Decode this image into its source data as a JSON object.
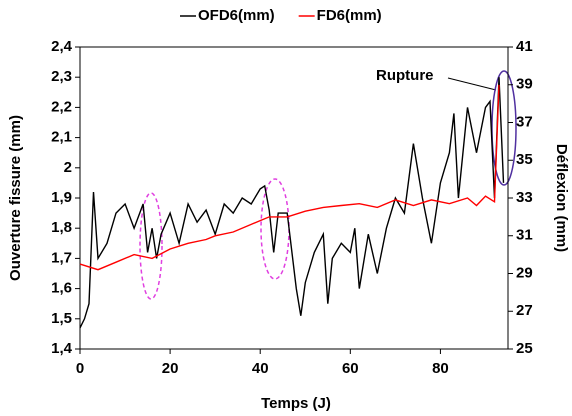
{
  "chart_data": {
    "type": "line",
    "x_label": "Temps (J)",
    "y_label": "Ouverture fissure (mm)",
    "y2_label": "Déflexion (mm)",
    "annotation": "Rupture",
    "xlim": [
      0,
      95
    ],
    "xticks": [
      0,
      20,
      40,
      60,
      80
    ],
    "ylim": [
      1.4,
      2.4
    ],
    "yticks": [
      {
        "value": 1.4,
        "label": "1,4"
      },
      {
        "value": 1.5,
        "label": "1,5"
      },
      {
        "value": 1.6,
        "label": "1,6"
      },
      {
        "value": 1.7,
        "label": "1,7"
      },
      {
        "value": 1.8,
        "label": "1,8"
      },
      {
        "value": 1.9,
        "label": "1,9"
      },
      {
        "value": 2.0,
        "label": "2"
      },
      {
        "value": 2.1,
        "label": "2,1"
      },
      {
        "value": 2.2,
        "label": "2,2"
      },
      {
        "value": 2.3,
        "label": "2,3"
      },
      {
        "value": 2.4,
        "label": "2,4"
      }
    ],
    "y2lim": [
      25,
      41
    ],
    "y2ticks": [
      25,
      27,
      29,
      31,
      33,
      35,
      37,
      39,
      41
    ],
    "series": [
      {
        "name": "OFD6(mm)",
        "color": "#000000",
        "x": [
          0,
          1,
          2,
          3,
          4,
          6,
          8,
          10,
          12,
          14,
          15,
          16,
          17,
          18,
          20,
          22,
          24,
          26,
          28,
          30,
          32,
          34,
          36,
          38,
          40,
          41,
          42,
          43,
          44,
          46,
          48,
          49,
          50,
          52,
          54,
          55,
          56,
          58,
          60,
          61,
          62,
          64,
          66,
          68,
          70,
          72,
          74,
          76,
          78,
          80,
          82,
          83,
          84,
          86,
          88,
          90,
          91,
          92,
          93,
          94
        ],
        "values": [
          1.47,
          1.5,
          1.55,
          1.92,
          1.7,
          1.75,
          1.85,
          1.88,
          1.8,
          1.88,
          1.72,
          1.8,
          1.7,
          1.78,
          1.85,
          1.75,
          1.88,
          1.82,
          1.86,
          1.78,
          1.88,
          1.85,
          1.9,
          1.88,
          1.93,
          1.94,
          1.86,
          1.72,
          1.85,
          1.85,
          1.6,
          1.51,
          1.62,
          1.72,
          1.78,
          1.55,
          1.7,
          1.75,
          1.72,
          1.8,
          1.6,
          1.78,
          1.65,
          1.8,
          1.9,
          1.85,
          2.08,
          1.9,
          1.75,
          1.95,
          2.05,
          2.18,
          1.9,
          2.2,
          2.05,
          2.2,
          2.22,
          1.9,
          2.3,
          1.95
        ]
      },
      {
        "name": "FD6(mm)",
        "color": "#ff0000",
        "axis": "y2",
        "x": [
          0,
          4,
          8,
          12,
          16,
          20,
          24,
          28,
          30,
          34,
          38,
          40,
          42,
          46,
          50,
          54,
          58,
          62,
          66,
          70,
          74,
          78,
          82,
          86,
          88,
          90,
          92,
          93
        ],
        "values": [
          29.5,
          29.2,
          29.6,
          30,
          29.8,
          30.3,
          30.6,
          30.8,
          31,
          31.2,
          31.6,
          31.8,
          32,
          32,
          32.3,
          32.5,
          32.6,
          32.7,
          32.5,
          32.9,
          32.6,
          32.9,
          32.7,
          33,
          32.6,
          33.1,
          32.8,
          39
        ]
      }
    ]
  }
}
